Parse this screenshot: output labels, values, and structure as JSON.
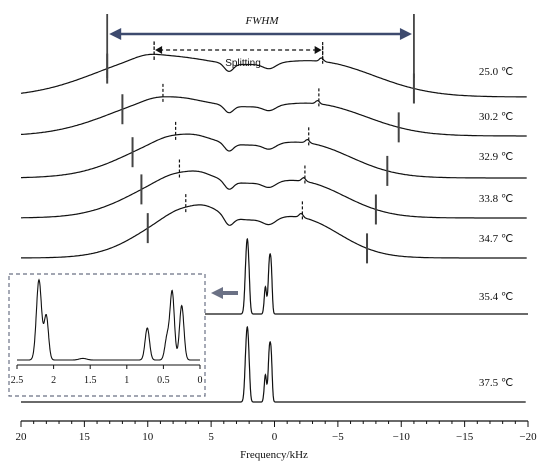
{
  "chart_data": {
    "type": "line",
    "xlabel": "Frequency/kHz",
    "xlim": [
      20,
      -20
    ],
    "x_ticks": [
      "20",
      "15",
      "10",
      "5",
      "0",
      "−5",
      "−10",
      "−15",
      "−20"
    ],
    "tick_values": [
      20,
      15,
      10,
      5,
      0,
      -5,
      -10,
      -15,
      -20
    ],
    "temperatures": [
      "25.0 ℃",
      "30.2 ℃",
      "32.9 ℃",
      "33.8 ℃",
      "34.7 ℃",
      "35.4 ℃",
      "37.5 ℃"
    ],
    "fwhm_khz": [
      13.2,
      12.0,
      11.2,
      10.5,
      10.0
    ],
    "fwhm_right_khz": [
      -11.0,
      -9.8,
      -8.9,
      -8.0,
      -7.3
    ],
    "splitting_khz": [
      9.5,
      8.8,
      7.8,
      7.5,
      7.0
    ],
    "splitting_right_khz": [
      -3.8,
      -3.5,
      -2.7,
      -2.4,
      -2.2
    ],
    "annotations": {
      "fwhm": "FWHM",
      "splitting": "Splitting"
    },
    "inset": {
      "xlim": [
        2.5,
        0
      ],
      "x_ticks": [
        "2.5",
        "2",
        "1.5",
        "1",
        "0.5",
        "0"
      ],
      "tick_values": [
        2.5,
        2,
        1.5,
        1,
        0.5,
        0
      ],
      "peaks_khz": [
        2.2,
        2.1,
        0.72,
        0.45,
        0.38,
        0.25
      ]
    }
  }
}
